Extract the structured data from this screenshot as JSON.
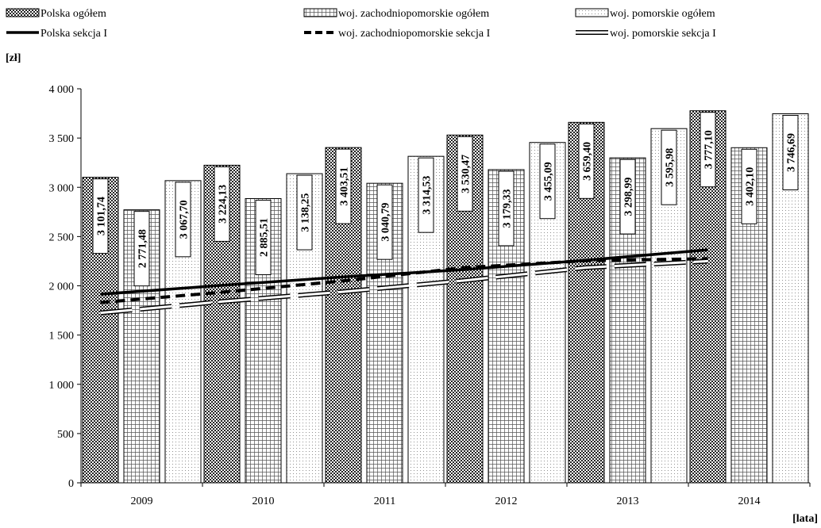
{
  "chart_data": {
    "type": "bar",
    "y_unit_label": "[zł]",
    "x_unit_label": "[lata]",
    "categories": [
      "2009",
      "2010",
      "2011",
      "2012",
      "2013",
      "2014"
    ],
    "ylim": [
      0,
      4000
    ],
    "y_ticks": [
      0,
      500,
      1000,
      1500,
      2000,
      2500,
      3000,
      3500,
      4000
    ],
    "y_tick_labels": [
      "0",
      "500",
      "1 000",
      "1 500",
      "2 000",
      "2 500",
      "3 000",
      "3 500",
      "4 000"
    ],
    "grid": false,
    "legend_placement": "top",
    "bar_series": [
      {
        "name": "Polska ogółem",
        "pattern": "checker",
        "values": [
          3101.74,
          3224.13,
          3403.51,
          3530.47,
          3659.4,
          3777.1
        ],
        "labels": [
          "3 101,74",
          "3 224,13",
          "3 403,51",
          "3 530,47",
          "3 659,40",
          "3 777,10"
        ]
      },
      {
        "name": "woj. zachodniopomorskie ogółem",
        "pattern": "grid",
        "values": [
          2771.48,
          2885.51,
          3040.79,
          3179.33,
          3298.99,
          3402.1
        ],
        "labels": [
          "2 771,48",
          "2 885,51",
          "3 040,79",
          "3 179,33",
          "3 298,99",
          "3 402,10"
        ]
      },
      {
        "name": "woj. pomorskie ogółem",
        "pattern": "dots",
        "values": [
          3067.7,
          3138.25,
          3314.53,
          3455.09,
          3595.98,
          3746.69
        ],
        "labels": [
          "3 067,70",
          "3 138,25",
          "3 314,53",
          "3 455,09",
          "3 595,98",
          "3 746,69"
        ]
      }
    ],
    "line_series": [
      {
        "name": "Polska sekcja I",
        "style": "solid",
        "values": [
          1915,
          2005,
          2090,
          2165,
          2260,
          2365
        ]
      },
      {
        "name": "woj. zachodniopomorskie sekcja I",
        "style": "dashed",
        "values": [
          1830,
          1935,
          2050,
          2185,
          2255,
          2275
        ]
      },
      {
        "name": "woj. pomorskie sekcja I",
        "style": "double",
        "values": [
          1725,
          1840,
          1940,
          2055,
          2185,
          2250
        ]
      }
    ]
  }
}
